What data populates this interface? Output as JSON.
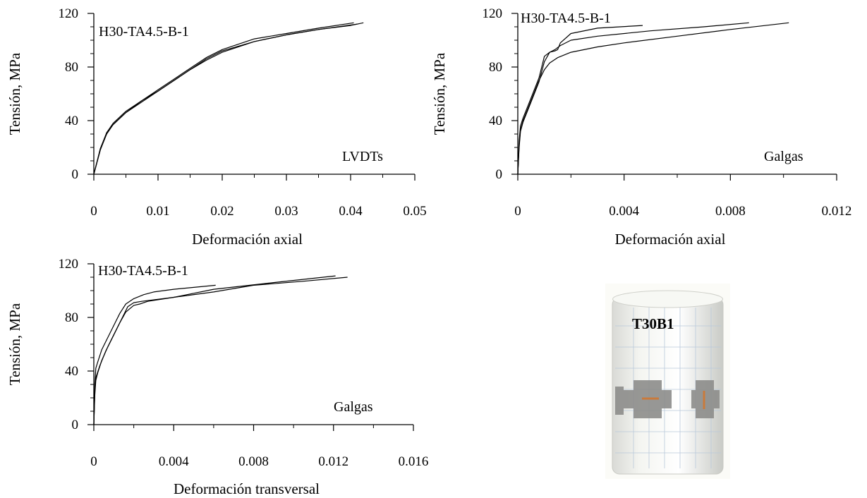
{
  "chart_data": [
    {
      "type": "line",
      "title": "",
      "xlabel": "Deformación axial",
      "ylabel": "Tensión, MPa",
      "xlim": [
        0,
        0.05
      ],
      "ylim": [
        0,
        120
      ],
      "xticks": [
        0,
        0.01,
        0.02,
        0.03,
        0.04,
        0.05
      ],
      "xtick_labels": [
        "0",
        "0.01",
        "0.02",
        "0.03",
        "0.04",
        "0.05"
      ],
      "yticks": [
        0,
        40,
        80,
        120
      ],
      "ytick_labels": [
        "0",
        "40",
        "80",
        "120"
      ],
      "annotations": [
        "H30-TA4.5-B-1",
        "LVDTs"
      ],
      "grid": false,
      "series": [
        {
          "x": [
            0,
            0.001,
            0.002,
            0.003,
            0.005,
            0.0075,
            0.01,
            0.0125,
            0.015,
            0.0175,
            0.02,
            0.025,
            0.03,
            0.035,
            0.04,
            0.042
          ],
          "y": [
            0,
            18,
            30,
            37,
            46,
            54,
            62,
            70,
            78,
            86,
            92,
            99,
            104,
            108,
            111,
            113
          ]
        },
        {
          "x": [
            0,
            0.001,
            0.002,
            0.003,
            0.005,
            0.0075,
            0.01,
            0.0125,
            0.015,
            0.0175,
            0.02,
            0.025,
            0.03,
            0.035,
            0.0405
          ],
          "y": [
            0,
            19,
            31,
            38,
            47,
            55,
            63,
            71,
            79,
            87,
            93,
            101,
            105,
            109,
            113
          ]
        },
        {
          "x": [
            0,
            0.001,
            0.002,
            0.003,
            0.005,
            0.0075,
            0.01,
            0.0125,
            0.015,
            0.0175,
            0.02,
            0.025,
            0.03,
            0.035,
            0.041
          ],
          "y": [
            0,
            18,
            31,
            37,
            46,
            55,
            62,
            70,
            78,
            85,
            91,
            99,
            104,
            108,
            112
          ]
        }
      ]
    },
    {
      "type": "line",
      "title": "",
      "xlabel": "Deformación axial",
      "ylabel": "Tensión, MPa",
      "xlim": [
        0,
        0.012
      ],
      "ylim": [
        0,
        120
      ],
      "xticks": [
        0,
        0.004,
        0.008,
        0.012
      ],
      "xtick_labels": [
        "0",
        "0.004",
        "0.008",
        "0.012"
      ],
      "yticks": [
        0,
        40,
        80,
        120
      ],
      "ytick_labels": [
        "0",
        "40",
        "80",
        "120"
      ],
      "annotations": [
        "H30-TA4.5-B-1",
        "Galgas"
      ],
      "grid": false,
      "series": [
        {
          "x": [
            0,
            5e-05,
            0.0001,
            0.0002,
            0.0004,
            0.0006,
            0.0008,
            0.001,
            0.0012,
            0.0015,
            0.002,
            0.003,
            0.004,
            0.006,
            0.008,
            0.0102
          ],
          "y": [
            0,
            22,
            33,
            40,
            50,
            60,
            70,
            78,
            83,
            87,
            91,
            95,
            98,
            103,
            108,
            113
          ]
        },
        {
          "x": [
            0,
            5e-05,
            0.0001,
            0.0002,
            0.0004,
            0.0006,
            0.0008,
            0.0009,
            0.001,
            0.0012,
            0.0014,
            0.0015,
            0.0016,
            0.002,
            0.003,
            0.0047
          ],
          "y": [
            0,
            25,
            36,
            42,
            52,
            62,
            72,
            80,
            88,
            91,
            92,
            93,
            98,
            105,
            109,
            111
          ]
        },
        {
          "x": [
            0,
            5e-05,
            0.0001,
            0.0002,
            0.0004,
            0.0006,
            0.0008,
            0.001,
            0.0012,
            0.0014,
            0.0016,
            0.002,
            0.003,
            0.005,
            0.007,
            0.0087
          ],
          "y": [
            0,
            20,
            32,
            39,
            49,
            59,
            69,
            84,
            91,
            93,
            96,
            100,
            103,
            107,
            110,
            113
          ]
        }
      ]
    },
    {
      "type": "line",
      "title": "",
      "xlabel": "Deformación transversal",
      "ylabel": "Tensión, MPa",
      "xlim": [
        0,
        0.016
      ],
      "ylim": [
        0,
        120
      ],
      "xticks": [
        0,
        0.004,
        0.008,
        0.012,
        0.016
      ],
      "xtick_labels": [
        "0",
        "0.004",
        "0.008",
        "0.012",
        "0.016"
      ],
      "yticks": [
        0,
        40,
        80,
        120
      ],
      "ytick_labels": [
        "0",
        "40",
        "80",
        "120"
      ],
      "annotations": [
        "H30-TA4.5-B-1",
        "Galgas"
      ],
      "grid": false,
      "series": [
        {
          "x": [
            0,
            5e-05,
            0.0001,
            0.0003,
            0.0006,
            0.001,
            0.0014,
            0.0017,
            0.002,
            0.0024,
            0.004,
            0.006,
            0.008,
            0.0105,
            0.0127
          ],
          "y": [
            0,
            25,
            35,
            44,
            55,
            67,
            79,
            88,
            91,
            92,
            95,
            99,
            104,
            107,
            110
          ]
        },
        {
          "x": [
            0,
            5e-05,
            0.0001,
            0.0002,
            0.0004,
            0.0007,
            0.001,
            0.0013,
            0.0016,
            0.002,
            0.0025,
            0.003,
            0.004,
            0.0061
          ],
          "y": [
            0,
            30,
            42,
            47,
            56,
            65,
            74,
            83,
            90,
            94,
            97,
            99,
            101,
            104
          ]
        },
        {
          "x": [
            0,
            5e-05,
            0.0001,
            0.0002,
            0.0004,
            0.0007,
            0.001,
            0.0013,
            0.0016,
            0.002,
            0.0023,
            0.0027,
            0.004,
            0.006,
            0.009,
            0.0121
          ],
          "y": [
            0,
            22,
            33,
            39,
            48,
            58,
            67,
            76,
            84,
            89,
            90,
            92,
            95,
            101,
            106,
            111
          ]
        }
      ]
    }
  ],
  "photo": {
    "label": "T30B1",
    "colors": {
      "background": "#fbfbf7",
      "specimen": "#f1f2ee",
      "grid": "#b9c9da",
      "patch": "#8d8d8b",
      "wire": "#c97a3c"
    }
  }
}
